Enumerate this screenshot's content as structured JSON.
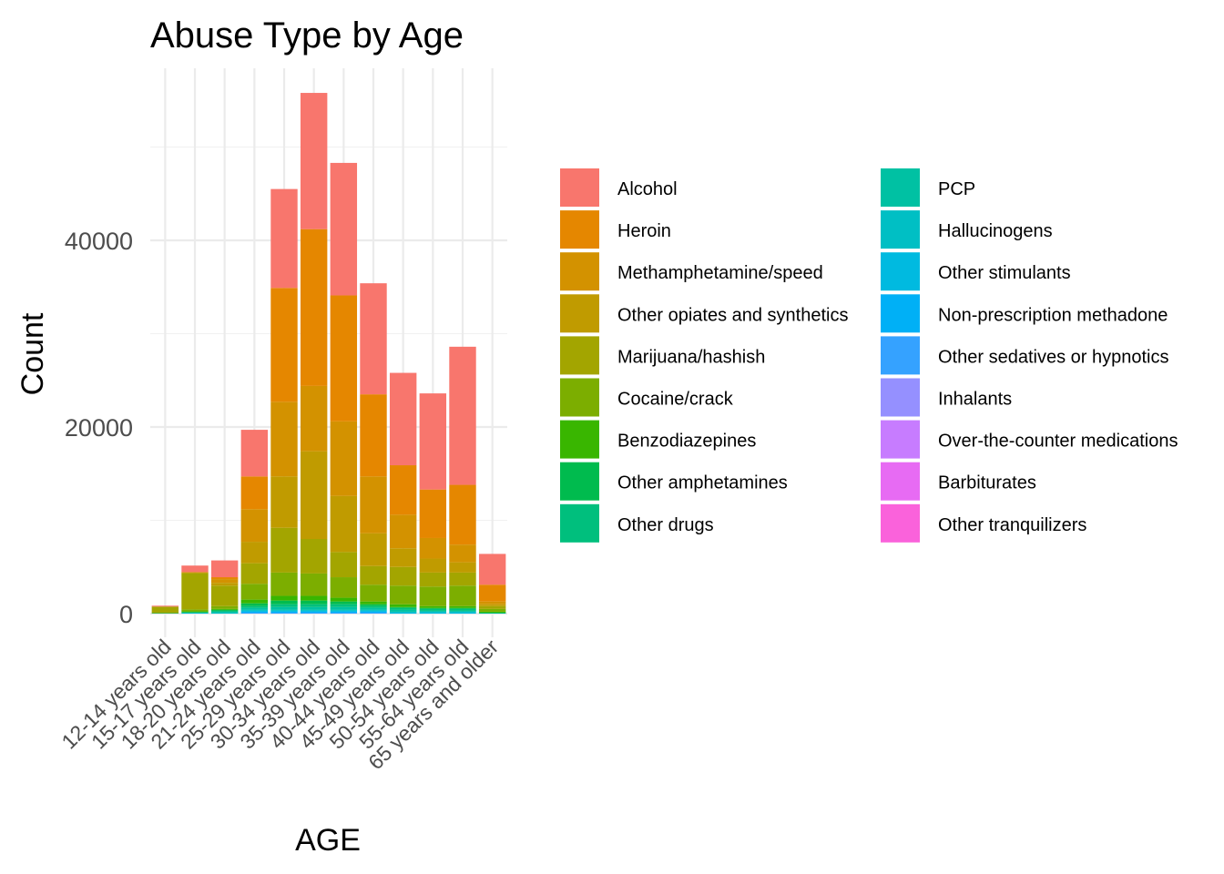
{
  "chart_data": {
    "type": "bar",
    "stacked": true,
    "title": "Abuse Type by Age",
    "xlabel": "AGE",
    "ylabel": "Count",
    "ylim": [
      0,
      57500
    ],
    "yticks": [
      0,
      20000,
      40000
    ],
    "grid": true,
    "legend_position": "right",
    "legend_columns": 2,
    "categories": [
      "12-14 years old",
      "15-17 years old",
      "18-20 years old",
      "21-24 years old",
      "25-29 years old",
      "30-34 years old",
      "35-39 years old",
      "40-44 years old",
      "45-49 years old",
      "50-54 years old",
      "55-64 years old",
      "65 years and older"
    ],
    "series": [
      {
        "name": "Alcohol",
        "color": "#F8766D",
        "values": [
          100,
          700,
          1800,
          5000,
          10600,
          14600,
          14200,
          11900,
          9900,
          10300,
          14800,
          3300
        ]
      },
      {
        "name": "Heroin",
        "color": "#E58700",
        "values": [
          0,
          0,
          200,
          3500,
          12200,
          16800,
          13500,
          8800,
          5300,
          5200,
          6400,
          1800
        ]
      },
      {
        "name": "Methamphetamine/speed",
        "color": "#D39200",
        "values": [
          0,
          100,
          400,
          3500,
          8000,
          7000,
          8000,
          6100,
          3600,
          2200,
          1900,
          300
        ]
      },
      {
        "name": "Other opiates and synthetics",
        "color": "#C09B00",
        "values": [
          0,
          0,
          300,
          2300,
          5500,
          9400,
          6000,
          3500,
          2000,
          1500,
          1100,
          200
        ]
      },
      {
        "name": "Marijuana/hashish",
        "color": "#A3A500",
        "values": [
          700,
          3900,
          2200,
          2200,
          4800,
          3700,
          2700,
          2000,
          2000,
          1500,
          1400,
          300
        ]
      },
      {
        "name": "Cocaine/crack",
        "color": "#7CAE00",
        "values": [
          0,
          200,
          300,
          1700,
          2500,
          2400,
          2200,
          1800,
          2000,
          2100,
          2200,
          300
        ]
      },
      {
        "name": "Benzodiazepines",
        "color": "#39B600",
        "values": [
          0,
          100,
          100,
          400,
          500,
          500,
          400,
          300,
          300,
          200,
          200,
          100
        ]
      },
      {
        "name": "Other amphetamines",
        "color": "#00BB4E",
        "values": [
          0,
          0,
          100,
          300,
          400,
          400,
          300,
          200,
          100,
          100,
          100,
          0
        ]
      },
      {
        "name": "Other drugs",
        "color": "#00BF7D",
        "values": [
          50,
          50,
          100,
          200,
          300,
          300,
          300,
          200,
          200,
          200,
          200,
          100
        ]
      },
      {
        "name": "PCP",
        "color": "#00C1A3",
        "values": [
          0,
          0,
          100,
          200,
          300,
          300,
          300,
          200,
          200,
          100,
          100,
          0
        ]
      },
      {
        "name": "Hallucinogens",
        "color": "#00BFC4",
        "values": [
          0,
          100,
          100,
          100,
          100,
          100,
          100,
          100,
          100,
          100,
          100,
          0
        ]
      },
      {
        "name": "Other stimulants",
        "color": "#00BAE0",
        "values": [
          0,
          0,
          0,
          100,
          100,
          100,
          100,
          100,
          100,
          100,
          100,
          0
        ]
      },
      {
        "name": "Non-prescription methadone",
        "color": "#00B0F6",
        "values": [
          0,
          0,
          0,
          100,
          100,
          100,
          100,
          100,
          0,
          0,
          0,
          0
        ]
      },
      {
        "name": "Other sedatives or hypnotics",
        "color": "#35A2FF",
        "values": [
          0,
          0,
          0,
          100,
          100,
          100,
          100,
          100,
          0,
          0,
          0,
          0
        ]
      },
      {
        "name": "Inhalants",
        "color": "#9590FF",
        "values": [
          0,
          0,
          0,
          0,
          0,
          0,
          0,
          0,
          0,
          0,
          0,
          0
        ]
      },
      {
        "name": "Over-the-counter medications",
        "color": "#C77CFF",
        "values": [
          0,
          0,
          0,
          0,
          0,
          0,
          0,
          0,
          0,
          0,
          0,
          0
        ]
      },
      {
        "name": "Barbiturates",
        "color": "#E76BF3",
        "values": [
          0,
          0,
          0,
          0,
          0,
          0,
          0,
          0,
          0,
          0,
          0,
          0
        ]
      },
      {
        "name": "Other tranquilizers",
        "color": "#FA62DB",
        "values": [
          0,
          0,
          0,
          0,
          0,
          0,
          0,
          0,
          0,
          0,
          0,
          0
        ]
      }
    ]
  },
  "legend_colors": [
    "#F8766D",
    "#E58700",
    "#D39200",
    "#C09B00",
    "#A3A500",
    "#7CAE00",
    "#39B600",
    "#00BB4E",
    "#00BF7D",
    "#00C1A3",
    "#00BFC4",
    "#00BAE0",
    "#00B0F6",
    "#35A2FF",
    "#9590FF",
    "#C77CFF",
    "#E76BF3",
    "#FA62DB"
  ]
}
